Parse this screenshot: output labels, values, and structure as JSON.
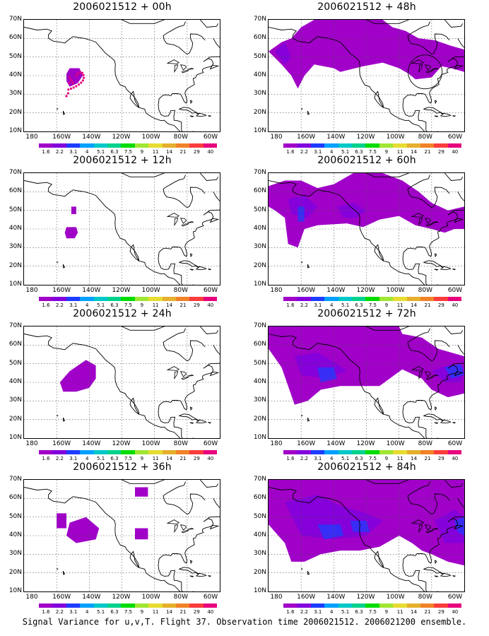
{
  "panels": [
    {
      "title": "2006021512 + 00h"
    },
    {
      "title": "2006021512 + 48h"
    },
    {
      "title": "2006021512 + 12h"
    },
    {
      "title": "2006021512 + 60h"
    },
    {
      "title": "2006021512 + 24h"
    },
    {
      "title": "2006021512 + 72h"
    },
    {
      "title": "2006021512 + 36h"
    },
    {
      "title": "2006021512 + 84h"
    }
  ],
  "lat_labels": [
    "70N",
    "60N",
    "50N",
    "40N",
    "30N",
    "20N",
    "10N"
  ],
  "lon_labels": [
    "180",
    "160W",
    "140W",
    "120W",
    "100W",
    "80W",
    "60W"
  ],
  "colorbar": {
    "labels": [
      "1.6",
      "2.2",
      "3.1",
      "4",
      "5.1",
      "6.3",
      "7.5",
      "9",
      "11",
      "14",
      "21",
      "29",
      "40"
    ],
    "colors": [
      "#a000c8",
      "#8200dc",
      "#1e3cff",
      "#00a0ff",
      "#00c8c8",
      "#00d28c",
      "#00dc00",
      "#a0e632",
      "#e6dc32",
      "#e6af2d",
      "#f08228",
      "#fa3c3c",
      "#e6007d"
    ]
  },
  "footer": "Signal Variance for u,v,T. Flight 37. Observation time 2006021512. 2006021200 ensemble.",
  "colors": {
    "low": "#a000c8",
    "mid": "#8200dc",
    "high": "#1e3cff",
    "coast": "#000000",
    "obs": "#e6007d"
  }
}
